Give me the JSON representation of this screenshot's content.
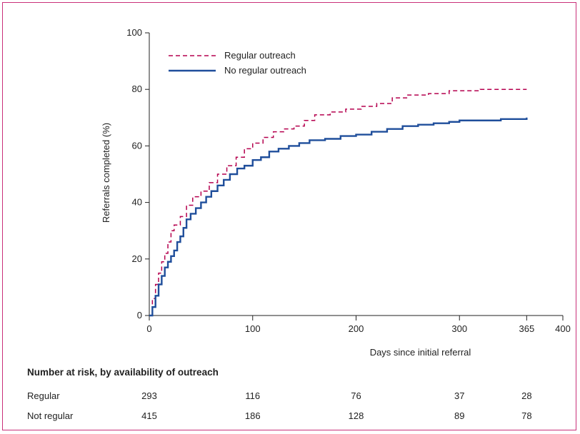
{
  "chart_data": {
    "type": "line",
    "xlabel": "Days since initial referral",
    "ylabel": "Referrals completed (%)",
    "xlim": [
      0,
      400
    ],
    "ylim": [
      0,
      100
    ],
    "x_ticks": [
      {
        "value": 0,
        "label": "0"
      },
      {
        "value": 100,
        "label": "100"
      },
      {
        "value": 200,
        "label": "200"
      },
      {
        "value": 300,
        "label": "300"
      },
      {
        "value": 365,
        "label": "365"
      },
      {
        "value": 400,
        "label": "400"
      }
    ],
    "y_ticks": [
      {
        "value": 0,
        "label": "0"
      },
      {
        "value": 20,
        "label": "20"
      },
      {
        "value": 40,
        "label": "40"
      },
      {
        "value": 60,
        "label": "60"
      },
      {
        "value": 80,
        "label": "80"
      },
      {
        "value": 100,
        "label": "100"
      }
    ],
    "grid": false,
    "legend_position": "top-left",
    "series": [
      {
        "name": "Regular outreach",
        "color": "#b5004e",
        "dash": true,
        "points": [
          [
            0,
            0
          ],
          [
            3,
            6
          ],
          [
            6,
            11
          ],
          [
            9,
            15
          ],
          [
            12,
            19
          ],
          [
            15,
            22
          ],
          [
            18,
            26
          ],
          [
            21,
            30
          ],
          [
            24,
            32
          ],
          [
            30,
            35
          ],
          [
            36,
            39
          ],
          [
            42,
            42
          ],
          [
            50,
            44
          ],
          [
            58,
            47
          ],
          [
            66,
            50
          ],
          [
            75,
            53
          ],
          [
            84,
            56
          ],
          [
            92,
            59
          ],
          [
            100,
            61
          ],
          [
            110,
            63
          ],
          [
            120,
            65
          ],
          [
            130,
            66
          ],
          [
            140,
            67
          ],
          [
            150,
            69
          ],
          [
            160,
            71
          ],
          [
            175,
            72
          ],
          [
            190,
            73
          ],
          [
            205,
            74
          ],
          [
            220,
            75
          ],
          [
            235,
            77
          ],
          [
            250,
            78
          ],
          [
            270,
            78.5
          ],
          [
            290,
            79.5
          ],
          [
            320,
            80
          ],
          [
            365,
            80
          ]
        ]
      },
      {
        "name": "No regular outreach",
        "color": "#1f4e9b",
        "dash": false,
        "points": [
          [
            0,
            0
          ],
          [
            3,
            3
          ],
          [
            6,
            7
          ],
          [
            9,
            11
          ],
          [
            12,
            14
          ],
          [
            15,
            17
          ],
          [
            18,
            19
          ],
          [
            21,
            21
          ],
          [
            24,
            23
          ],
          [
            27,
            26
          ],
          [
            30,
            28
          ],
          [
            33,
            31
          ],
          [
            36,
            34
          ],
          [
            40,
            36
          ],
          [
            45,
            38
          ],
          [
            50,
            40
          ],
          [
            55,
            42
          ],
          [
            60,
            44
          ],
          [
            66,
            46
          ],
          [
            72,
            48
          ],
          [
            78,
            50
          ],
          [
            85,
            52
          ],
          [
            92,
            53
          ],
          [
            100,
            55
          ],
          [
            108,
            56
          ],
          [
            116,
            58
          ],
          [
            125,
            59
          ],
          [
            135,
            60
          ],
          [
            145,
            61
          ],
          [
            155,
            62
          ],
          [
            170,
            62.5
          ],
          [
            185,
            63.5
          ],
          [
            200,
            64
          ],
          [
            215,
            65
          ],
          [
            230,
            66
          ],
          [
            245,
            67
          ],
          [
            260,
            67.5
          ],
          [
            275,
            68
          ],
          [
            290,
            68.5
          ],
          [
            300,
            69
          ],
          [
            340,
            69.5
          ],
          [
            365,
            70
          ]
        ]
      }
    ],
    "risk_table": {
      "title": "Number at risk, by availability of outreach",
      "timepoints": [
        0,
        100,
        200,
        300,
        365
      ],
      "rows": [
        {
          "label": "Regular",
          "values": [
            "293",
            "116",
            "76",
            "37",
            "28"
          ]
        },
        {
          "label": "Not regular",
          "values": [
            "415",
            "186",
            "128",
            "89",
            "78"
          ]
        }
      ]
    }
  }
}
